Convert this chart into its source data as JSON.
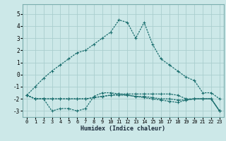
{
  "xlabel": "Humidex (Indice chaleur)",
  "ylabel": "",
  "xlim": [
    -0.5,
    23.5
  ],
  "ylim": [
    -3.5,
    5.8
  ],
  "xticks": [
    0,
    1,
    2,
    3,
    4,
    5,
    6,
    7,
    8,
    9,
    10,
    11,
    12,
    13,
    14,
    15,
    16,
    17,
    18,
    19,
    20,
    21,
    22,
    23
  ],
  "yticks": [
    -3,
    -2,
    -1,
    0,
    1,
    2,
    3,
    4,
    5
  ],
  "bg_color": "#cce8e8",
  "grid_color": "#aacece",
  "line_color": "#1a6e6e",
  "line1_x": [
    0,
    1,
    2,
    3,
    4,
    5,
    6,
    7,
    8,
    9,
    10,
    11,
    12,
    13,
    14,
    15,
    16,
    17,
    18,
    19,
    20,
    21,
    22,
    23
  ],
  "line1_y": [
    -1.7,
    -1.0,
    -0.3,
    0.3,
    0.8,
    1.3,
    1.8,
    2.0,
    2.5,
    3.0,
    3.5,
    4.5,
    4.3,
    3.0,
    4.3,
    2.5,
    1.3,
    0.8,
    0.3,
    -0.2,
    -0.5,
    -1.5,
    -1.5,
    -2.0
  ],
  "line2_x": [
    0,
    1,
    2,
    3,
    4,
    5,
    6,
    7,
    8,
    9,
    10,
    11,
    12,
    13,
    14,
    15,
    16,
    17,
    18,
    19,
    20,
    21,
    22,
    23
  ],
  "line2_y": [
    -1.7,
    -2.0,
    -2.0,
    -3.0,
    -2.8,
    -2.8,
    -3.0,
    -2.8,
    -1.8,
    -1.5,
    -1.5,
    -1.6,
    -1.7,
    -1.8,
    -1.9,
    -2.0,
    -2.1,
    -2.2,
    -2.3,
    -2.1,
    -2.0,
    -2.0,
    -2.0,
    -3.0
  ],
  "line3_x": [
    0,
    1,
    2,
    3,
    4,
    5,
    6,
    7,
    8,
    9,
    10,
    11,
    12,
    13,
    14,
    15,
    16,
    17,
    18,
    19,
    20,
    21,
    22,
    23
  ],
  "line3_y": [
    -1.7,
    -2.0,
    -2.0,
    -2.0,
    -2.0,
    -2.0,
    -2.0,
    -2.0,
    -1.9,
    -1.8,
    -1.7,
    -1.7,
    -1.7,
    -1.8,
    -1.8,
    -1.9,
    -2.0,
    -2.0,
    -2.1,
    -2.1,
    -2.0,
    -2.0,
    -2.0,
    -3.0
  ],
  "line4_x": [
    0,
    1,
    2,
    3,
    4,
    5,
    6,
    7,
    8,
    9,
    10,
    11,
    12,
    13,
    14,
    15,
    16,
    17,
    18,
    19,
    20,
    21,
    22,
    23
  ],
  "line4_y": [
    -1.7,
    -2.0,
    -2.0,
    -2.0,
    -2.0,
    -2.0,
    -2.0,
    -2.0,
    -1.9,
    -1.8,
    -1.7,
    -1.6,
    -1.6,
    -1.6,
    -1.6,
    -1.6,
    -1.6,
    -1.6,
    -1.7,
    -2.0,
    -2.0,
    -2.0,
    -2.0,
    -3.0
  ]
}
